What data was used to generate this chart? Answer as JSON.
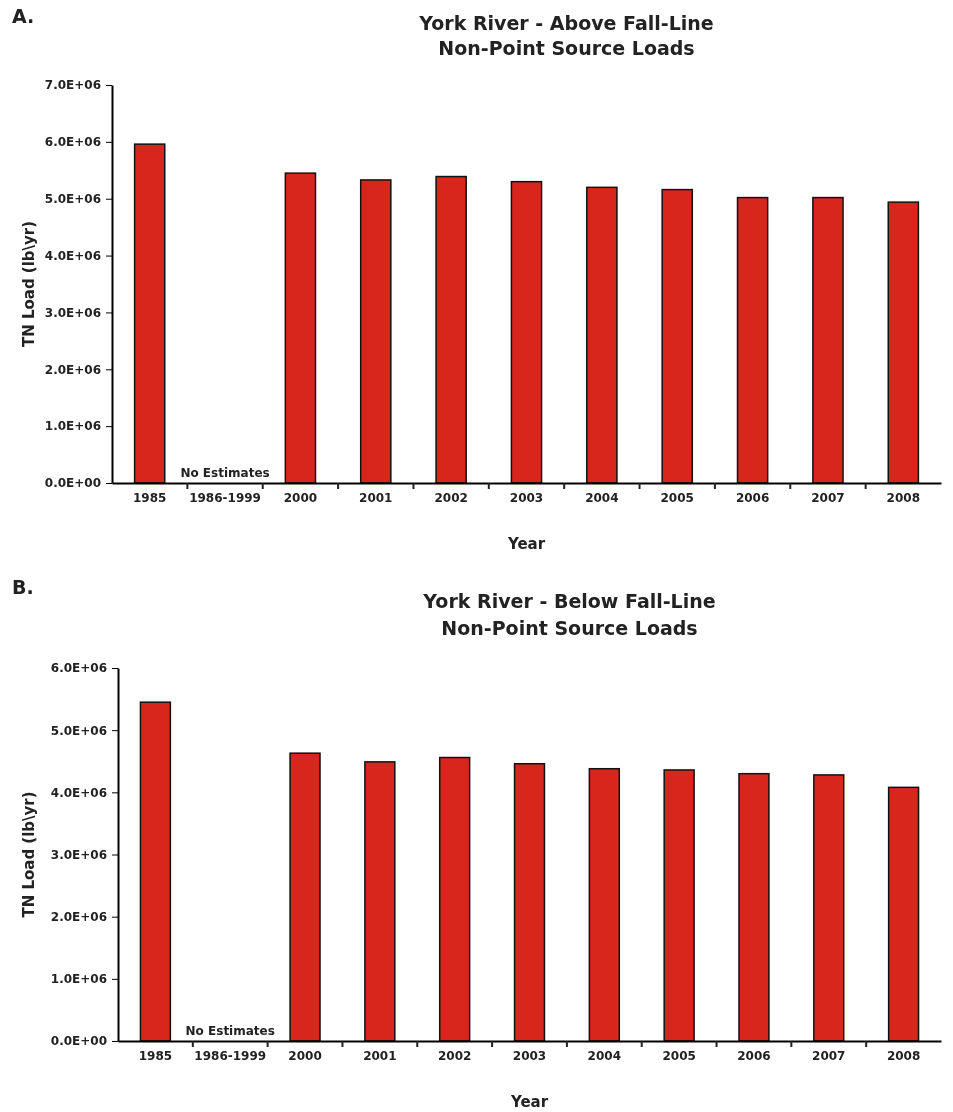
{
  "chart_data": [
    {
      "type": "bar",
      "title": "York River - Above Fall-Line",
      "subtitle": "Non-Point Source Loads",
      "xlabel": "Year",
      "ylabel": "TN Load (lb\\yr)",
      "categories": [
        "1985",
        "1986-1999",
        "2000",
        "2001",
        "2002",
        "2003",
        "2004",
        "2005",
        "2006",
        "2007",
        "2008"
      ],
      "values": [
        5960000,
        null,
        5450000,
        5330000,
        5390000,
        5300000,
        5200000,
        5160000,
        5020000,
        5020000,
        4940000
      ],
      "color": "#d9261c",
      "ylim": [
        0,
        7000000
      ],
      "yticks": [
        {
          "value": 0,
          "label": "0.0E+00"
        },
        {
          "value": 1000000,
          "label": "1.0E+06"
        },
        {
          "value": 2000000,
          "label": "2.0E+06"
        },
        {
          "value": 3000000,
          "label": "3.0E+06"
        },
        {
          "value": 4000000,
          "label": "4.0E+06"
        },
        {
          "value": 5000000,
          "label": "5.0E+06"
        },
        {
          "value": 6000000,
          "label": "6.0E+06"
        },
        {
          "value": 7000000,
          "label": "7.0E+06"
        }
      ],
      "grid": false,
      "annotations": [
        "A.",
        "No Estimates"
      ]
    },
    {
      "type": "bar",
      "title": "York River - Below Fall-Line",
      "subtitle": "Non-Point Source Loads",
      "xlabel": "Year",
      "ylabel": "TN Load (lb\\yr)",
      "categories": [
        "1985",
        "1986-1999",
        "2000",
        "2001",
        "2002",
        "2003",
        "2004",
        "2005",
        "2006",
        "2007",
        "2008"
      ],
      "values": [
        5450000,
        null,
        4630000,
        4490000,
        4560000,
        4460000,
        4380000,
        4360000,
        4300000,
        4280000,
        4080000
      ],
      "color": "#d9261c",
      "ylim": [
        0,
        6000000
      ],
      "yticks": [
        {
          "value": 0,
          "label": "0.0E+00"
        },
        {
          "value": 1000000,
          "label": "1.0E+06"
        },
        {
          "value": 2000000,
          "label": "2.0E+06"
        },
        {
          "value": 3000000,
          "label": "3.0E+06"
        },
        {
          "value": 4000000,
          "label": "4.0E+06"
        },
        {
          "value": 5000000,
          "label": "5.0E+06"
        },
        {
          "value": 6000000,
          "label": "6.0E+06"
        }
      ],
      "grid": false,
      "annotations": [
        "B.",
        "No Estimates"
      ]
    }
  ]
}
